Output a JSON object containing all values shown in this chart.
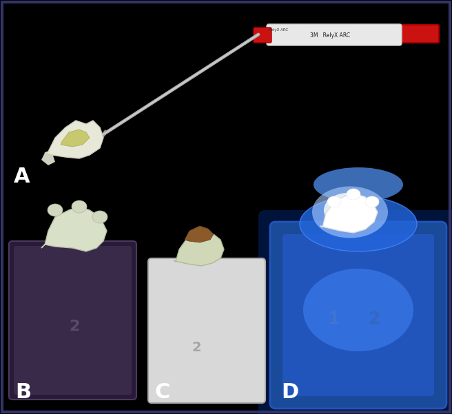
{
  "fig_width": 6.56,
  "fig_height": 6.01,
  "dpi": 100,
  "background_color": "#000000",
  "label_A": "A",
  "label_B": "B",
  "label_C": "C",
  "label_D": "D",
  "label_color": "#ffffff",
  "label_fontsize": 22,
  "border_color": "#333366",
  "border_linewidth": 3
}
